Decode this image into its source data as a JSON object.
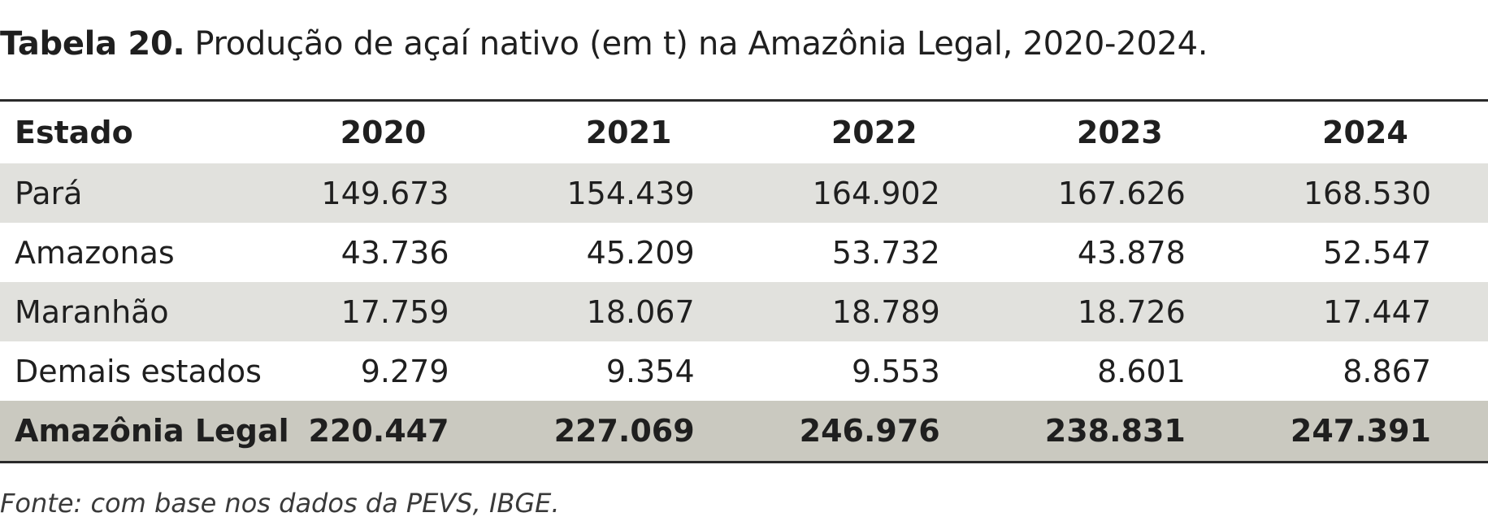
{
  "caption": {
    "label": "Tabela 20.",
    "text": "Produção de açaí nativo (em t) na Amazônia Legal, 2020-2024."
  },
  "table": {
    "headers": [
      "Estado",
      "2020",
      "2021",
      "2022",
      "2023",
      "2024"
    ],
    "rows": [
      {
        "state": "Pará",
        "values": [
          "149.673",
          "154.439",
          "164.902",
          "167.626",
          "168.530"
        ]
      },
      {
        "state": "Amazonas",
        "values": [
          "43.736",
          "45.209",
          "53.732",
          "43.878",
          "52.547"
        ]
      },
      {
        "state": "Maranhão",
        "values": [
          "17.759",
          "18.067",
          "18.789",
          "18.726",
          "17.447"
        ]
      },
      {
        "state": "Demais estados",
        "values": [
          "9.279",
          "9.354",
          "9.553",
          "8.601",
          "8.867"
        ]
      }
    ],
    "total": {
      "state": "Amazônia Legal",
      "values": [
        "220.447",
        "227.069",
        "246.976",
        "238.831",
        "247.391"
      ]
    }
  },
  "source": "Fonte: com base nos dados da PEVS, IBGE."
}
